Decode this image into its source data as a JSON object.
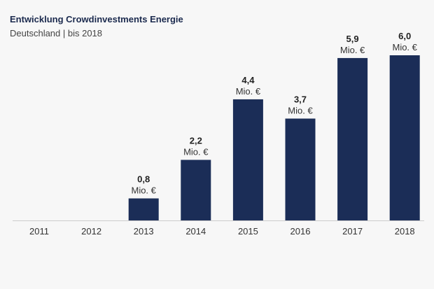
{
  "header": {
    "title": "Entwicklung Crowdinvestments Energie",
    "subtitle": "Deutschland | bis 2018"
  },
  "chart_data": {
    "type": "bar",
    "categories": [
      "2011",
      "2012",
      "2013",
      "2014",
      "2015",
      "2016",
      "2017",
      "2018"
    ],
    "values": [
      0,
      0,
      0.8,
      2.2,
      4.4,
      3.7,
      5.9,
      6.0
    ],
    "value_labels": [
      "",
      "",
      "0,8",
      "2,2",
      "4,4",
      "3,7",
      "5,9",
      "6,0"
    ],
    "unit_label": "Mio. €",
    "ylim": [
      0,
      6.0
    ],
    "bar_color": "#1b2d57",
    "grid": false
  }
}
